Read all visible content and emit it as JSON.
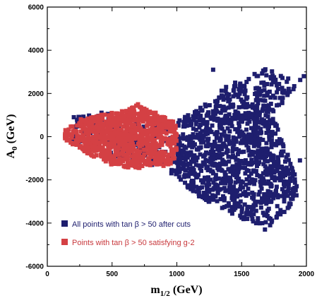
{
  "chart_data": {
    "type": "scatter",
    "title": "",
    "xlabel_main": "m",
    "xlabel_sub": "1/2",
    "xlabel_unit": " (GeV)",
    "ylabel_main": "A",
    "ylabel_sub": "0",
    "ylabel_unit": " (GeV)",
    "xlim": [
      0,
      2000
    ],
    "ylim": [
      -6000,
      6000
    ],
    "x_ticks": [
      0,
      500,
      1000,
      1500,
      2000
    ],
    "y_ticks": [
      -6000,
      -4000,
      -2000,
      0,
      2000,
      4000,
      6000
    ],
    "x_tick_labels": [
      "0",
      "500",
      "1000",
      "1500",
      "2000"
    ],
    "y_tick_labels": [
      "-6000",
      "-4000",
      "-2000",
      "0",
      "2000",
      "4000",
      "6000"
    ],
    "grid": false,
    "legend_position": "bottom-left",
    "series": [
      {
        "name": "All points with tan β > 50 after cuts",
        "color": "#1e1e6e",
        "region": {
          "description_points": [
            [
              200,
              900
            ],
            [
              400,
              1200
            ],
            [
              600,
              800
            ],
            [
              800,
              600
            ],
            [
              1000,
              700
            ],
            [
              1200,
              1400
            ],
            [
              1400,
              2400
            ],
            [
              1600,
              2800
            ],
            [
              1700,
              3200
            ],
            [
              1900,
              2600
            ],
            [
              1980,
              2700
            ],
            [
              1850,
              1900
            ],
            [
              1750,
              900
            ],
            [
              1900,
              -1500
            ],
            [
              1950,
              -2600
            ],
            [
              1850,
              -3400
            ],
            [
              1700,
              -4200
            ],
            [
              1500,
              -3800
            ],
            [
              1300,
              -3300
            ],
            [
              1150,
              -2700
            ],
            [
              1000,
              -1900
            ],
            [
              800,
              -1300
            ],
            [
              500,
              -900
            ],
            [
              300,
              -600
            ],
            [
              180,
              -200
            ]
          ]
        },
        "sample": [
          [
            1280,
            3100
          ],
          [
            1600,
            2900
          ],
          [
            1750,
            2750
          ],
          [
            1980,
            2800
          ],
          [
            1900,
            2200
          ],
          [
            1450,
            2500
          ],
          [
            1380,
            2300
          ],
          [
            1700,
            -2700
          ],
          [
            1900,
            -2700
          ],
          [
            1680,
            -4300
          ],
          [
            1720,
            -4100
          ],
          [
            1550,
            -3600
          ],
          [
            1350,
            -3300
          ],
          [
            1250,
            -3000
          ],
          [
            1400,
            -3200
          ],
          [
            1200,
            -2800
          ],
          [
            1800,
            -3400
          ],
          [
            1950,
            -1100
          ],
          [
            1880,
            -1700
          ]
        ],
        "count": 1400
      },
      {
        "name": "Points with tan β > 50 satisfying g-2",
        "color": "#d44044",
        "region": {
          "description_points": [
            [
              140,
              300
            ],
            [
              250,
              800
            ],
            [
              400,
              1000
            ],
            [
              600,
              1200
            ],
            [
              700,
              1500
            ],
            [
              750,
              1400
            ],
            [
              900,
              900
            ],
            [
              1000,
              700
            ],
            [
              1000,
              -600
            ],
            [
              950,
              -1300
            ],
            [
              850,
              -1400
            ],
            [
              700,
              -1500
            ],
            [
              500,
              -1300
            ],
            [
              350,
              -900
            ],
            [
              200,
              -500
            ],
            [
              130,
              -100
            ]
          ]
        },
        "sample": [
          [
            700,
            1500
          ],
          [
            660,
            1300
          ],
          [
            900,
            900
          ],
          [
            990,
            500
          ],
          [
            980,
            -1000
          ],
          [
            140,
            300
          ],
          [
            150,
            0
          ],
          [
            200,
            -300
          ],
          [
            950,
            -1200
          ]
        ],
        "count": 900
      }
    ]
  }
}
